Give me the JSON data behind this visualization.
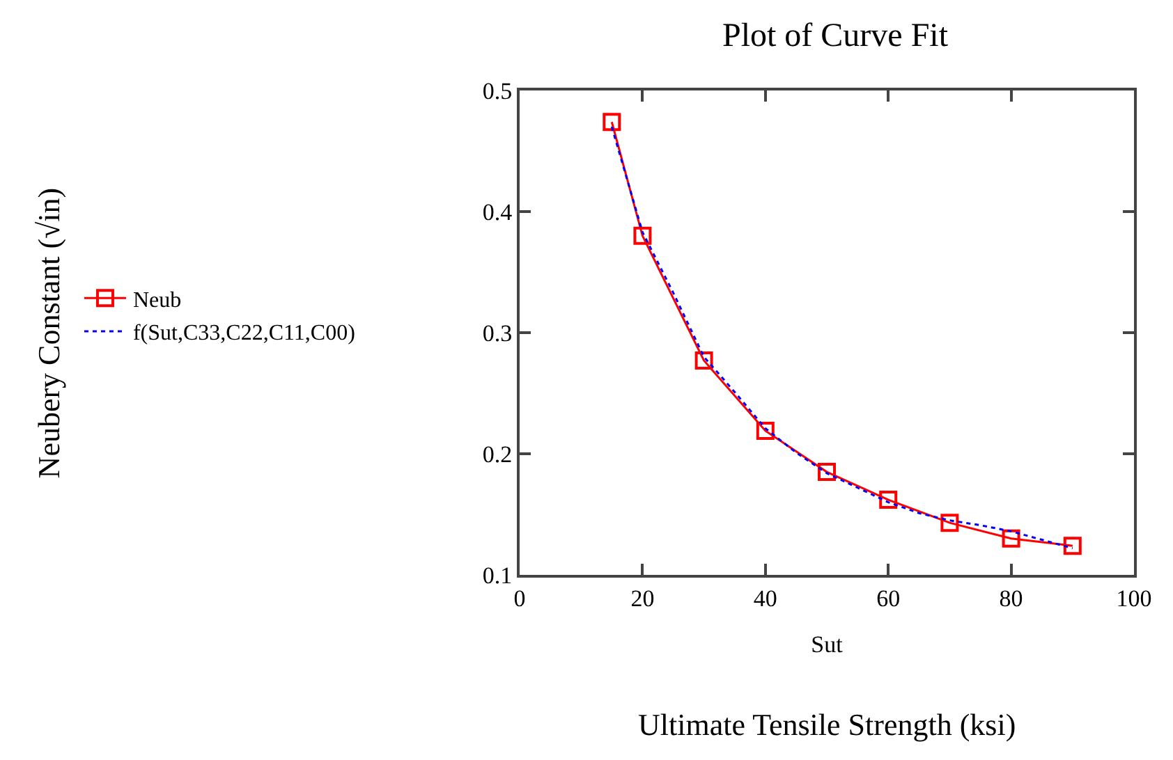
{
  "chart_data": {
    "type": "line",
    "title": "Plot of Curve Fit",
    "xlabel": "Sut",
    "annotations": [
      "Neubery Constant (√in)",
      "Ultimate Tensile Strength (ksi)"
    ],
    "xlim": [
      0,
      100
    ],
    "xticks": [
      0,
      20,
      40,
      60,
      80,
      100
    ],
    "ylim": [
      0.1,
      0.5
    ],
    "yticks": [
      0.1,
      0.2,
      0.3,
      0.4,
      0.5
    ],
    "grid": false,
    "legend": "left",
    "series": [
      {
        "name": "Neub",
        "color": "#ff0000",
        "marker": "square",
        "line_style": "solid",
        "x": [
          15,
          20,
          30,
          40,
          50,
          60,
          70,
          80,
          90
        ],
        "values": [
          0.474,
          0.38,
          0.277,
          0.219,
          0.185,
          0.162,
          0.143,
          0.13,
          0.124
        ]
      },
      {
        "name": "f(Sut,C33,C22,C11,C00)",
        "color": "#0000ff",
        "marker": "none",
        "line_style": "dotted",
        "x": [
          15,
          20,
          25,
          30,
          35,
          40,
          45,
          50,
          55,
          60,
          65,
          70,
          75,
          80,
          85,
          90
        ],
        "values": [
          0.47,
          0.383,
          0.333,
          0.28,
          0.251,
          0.221,
          0.201,
          0.184,
          0.172,
          0.16,
          0.151,
          0.145,
          0.141,
          0.136,
          0.129,
          0.122
        ]
      }
    ]
  }
}
